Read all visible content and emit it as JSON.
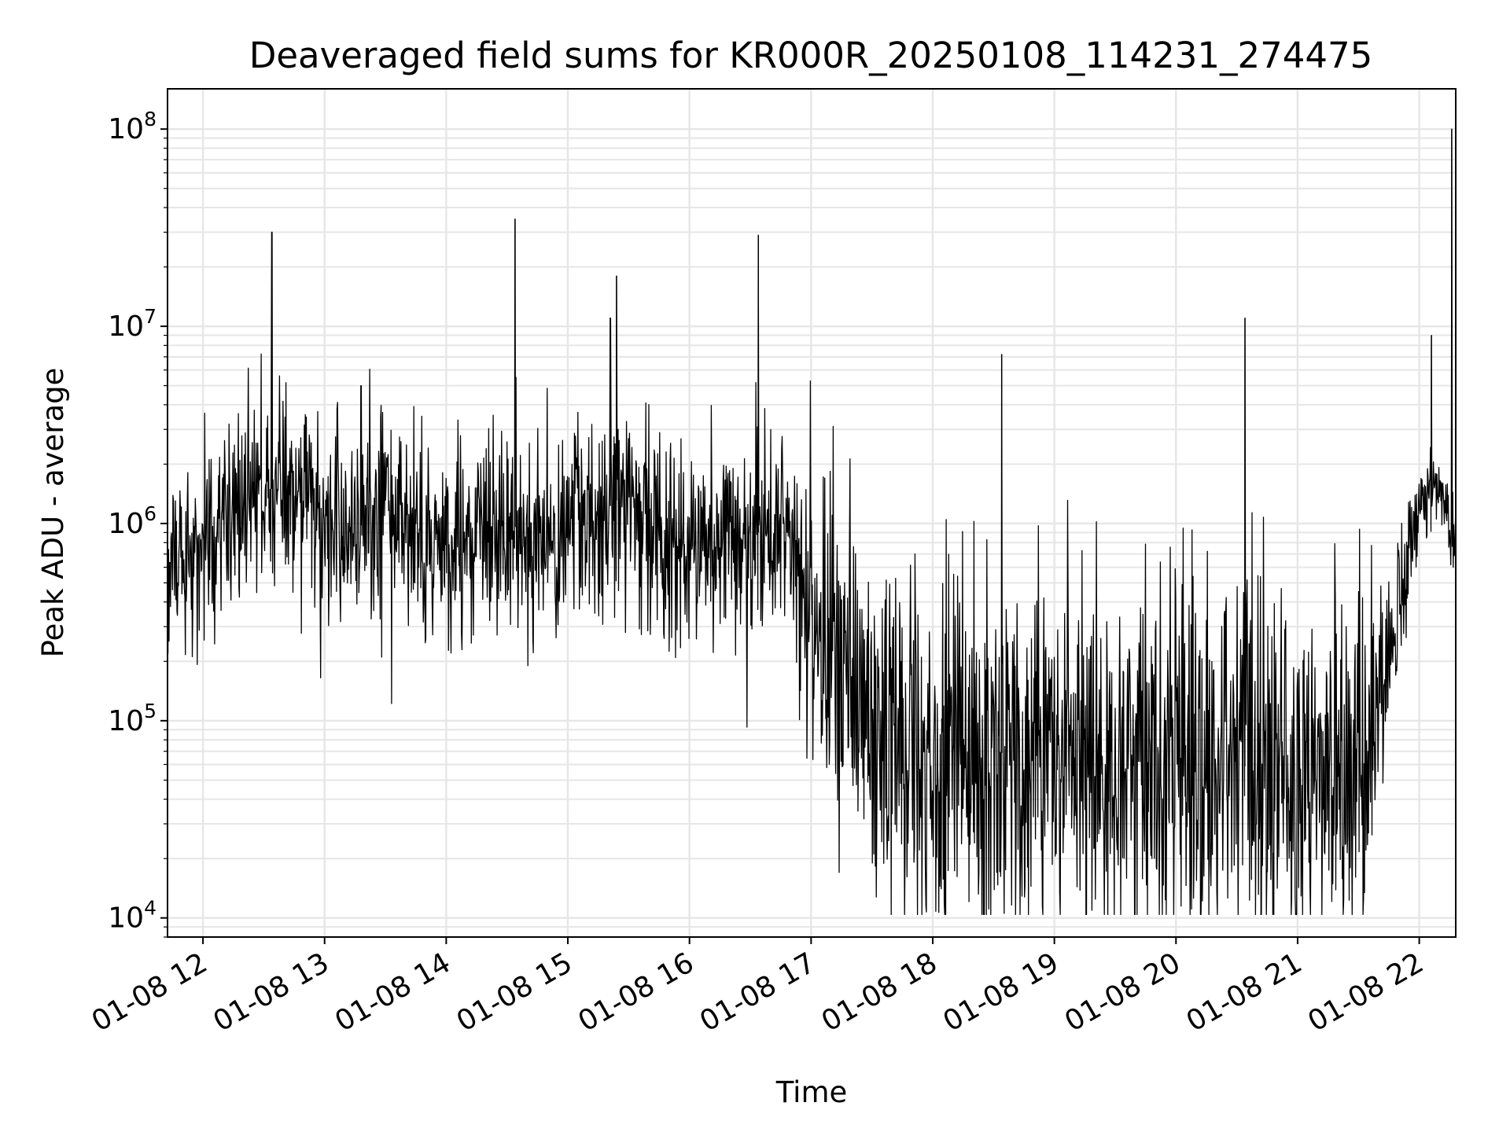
{
  "chart_data": {
    "type": "line",
    "title": "Deaveraged field sums for KR000R_20250108_114231_274475",
    "xlabel": "Time",
    "ylabel": "Peak ADU - average",
    "yscale": "log",
    "xlim": [
      "2025-01-08T11:42:31",
      "2025-01-08T22:18:00"
    ],
    "ylim": [
      8000,
      160000000
    ],
    "grid": true,
    "x_ticks": [
      {
        "label": "01-08 12",
        "time": "2025-01-08T12:00:00"
      },
      {
        "label": "01-08 13",
        "time": "2025-01-08T13:00:00"
      },
      {
        "label": "01-08 14",
        "time": "2025-01-08T14:00:00"
      },
      {
        "label": "01-08 15",
        "time": "2025-01-08T15:00:00"
      },
      {
        "label": "01-08 16",
        "time": "2025-01-08T16:00:00"
      },
      {
        "label": "01-08 17",
        "time": "2025-01-08T17:00:00"
      },
      {
        "label": "01-08 18",
        "time": "2025-01-08T18:00:00"
      },
      {
        "label": "01-08 19",
        "time": "2025-01-08T19:00:00"
      },
      {
        "label": "01-08 20",
        "time": "2025-01-08T20:00:00"
      },
      {
        "label": "01-08 21",
        "time": "2025-01-08T21:00:00"
      },
      {
        "label": "01-08 22",
        "time": "2025-01-08T22:00:00"
      }
    ],
    "y_ticks": [
      {
        "base": "10",
        "exp": "4",
        "value": 10000
      },
      {
        "base": "10",
        "exp": "5",
        "value": 100000
      },
      {
        "base": "10",
        "exp": "6",
        "value": 1000000
      },
      {
        "base": "10",
        "exp": "7",
        "value": 10000000
      },
      {
        "base": "10",
        "exp": "8",
        "value": 100000000
      }
    ],
    "series": [
      {
        "color": "#000000",
        "x": [
          "2025-01-08T11:42:31",
          "2025-01-08T11:50:00",
          "2025-01-08T12:00:00",
          "2025-01-08T12:10:00",
          "2025-01-08T12:20:00",
          "2025-01-08T12:30:00",
          "2025-01-08T12:40:00",
          "2025-01-08T12:50:00",
          "2025-01-08T13:00:00",
          "2025-01-08T13:10:00",
          "2025-01-08T13:20:00",
          "2025-01-08T13:30:00",
          "2025-01-08T13:40:00",
          "2025-01-08T13:50:00",
          "2025-01-08T14:00:00",
          "2025-01-08T14:10:00",
          "2025-01-08T14:20:00",
          "2025-01-08T14:30:00",
          "2025-01-08T14:40:00",
          "2025-01-08T14:50:00",
          "2025-01-08T15:00:00",
          "2025-01-08T15:10:00",
          "2025-01-08T15:20:00",
          "2025-01-08T15:30:00",
          "2025-01-08T15:40:00",
          "2025-01-08T15:50:00",
          "2025-01-08T16:00:00",
          "2025-01-08T16:10:00",
          "2025-01-08T16:20:00",
          "2025-01-08T16:30:00",
          "2025-01-08T16:40:00",
          "2025-01-08T16:50:00",
          "2025-01-08T17:00:00",
          "2025-01-08T17:10:00",
          "2025-01-08T17:20:00",
          "2025-01-08T17:30:00",
          "2025-01-08T17:40:00",
          "2025-01-08T17:50:00",
          "2025-01-08T18:00:00",
          "2025-01-08T18:15:00",
          "2025-01-08T18:30:00",
          "2025-01-08T18:45:00",
          "2025-01-08T19:00:00",
          "2025-01-08T19:15:00",
          "2025-01-08T19:30:00",
          "2025-01-08T19:45:00",
          "2025-01-08T20:00:00",
          "2025-01-08T20:15:00",
          "2025-01-08T20:30:00",
          "2025-01-08T20:45:00",
          "2025-01-08T21:00:00",
          "2025-01-08T21:15:00",
          "2025-01-08T21:30:00",
          "2025-01-08T21:40:00",
          "2025-01-08T21:50:00",
          "2025-01-08T22:00:00",
          "2025-01-08T22:10:00",
          "2025-01-08T22:18:00"
        ],
        "center": [
          700000,
          750000,
          800000,
          1000000,
          1300000,
          1500000,
          1500000,
          1300000,
          1100000,
          900000,
          1000000,
          1200000,
          1000000,
          800000,
          800000,
          850000,
          900000,
          1000000,
          900000,
          850000,
          900000,
          1000000,
          1200000,
          1500000,
          1000000,
          850000,
          800000,
          800000,
          850000,
          900000,
          900000,
          1000000,
          350000,
          250000,
          150000,
          100000,
          90000,
          80000,
          70000,
          70000,
          70000,
          65000,
          65000,
          65000,
          60000,
          60000,
          60000,
          60000,
          60000,
          55000,
          55000,
          55000,
          55000,
          150000,
          400000,
          1100000,
          1500000,
          900000
        ],
        "spread": [
          0.45,
          0.45,
          0.45,
          0.45,
          0.45,
          0.45,
          0.45,
          0.45,
          0.45,
          0.45,
          0.45,
          0.45,
          0.45,
          0.45,
          0.45,
          0.45,
          0.45,
          0.45,
          0.45,
          0.45,
          0.45,
          0.45,
          0.45,
          0.45,
          0.45,
          0.45,
          0.45,
          0.45,
          0.45,
          0.45,
          0.45,
          0.45,
          0.75,
          0.8,
          0.85,
          0.85,
          0.85,
          0.85,
          0.85,
          0.85,
          0.85,
          0.85,
          0.85,
          0.85,
          0.85,
          0.85,
          0.85,
          0.85,
          0.85,
          0.85,
          0.85,
          0.85,
          0.85,
          0.55,
          0.35,
          0.2,
          0.2,
          0.2
        ],
        "spikes": [
          {
            "time": "2025-01-08T12:34:00",
            "value": 30000000
          },
          {
            "time": "2025-01-08T13:18:00",
            "value": 5000000
          },
          {
            "time": "2025-01-08T14:34:00",
            "value": 35000000
          },
          {
            "time": "2025-01-08T15:21:00",
            "value": 11000000
          },
          {
            "time": "2025-01-08T15:24:00",
            "value": 18000000
          },
          {
            "time": "2025-01-08T16:34:00",
            "value": 29000000
          },
          {
            "time": "2025-01-08T18:34:00",
            "value": 7200000
          },
          {
            "time": "2025-01-08T20:34:00",
            "value": 11000000
          },
          {
            "time": "2025-01-08T22:06:00",
            "value": 9000000
          },
          {
            "time": "2025-01-08T22:16:00",
            "value": 100000000
          }
        ]
      }
    ]
  }
}
